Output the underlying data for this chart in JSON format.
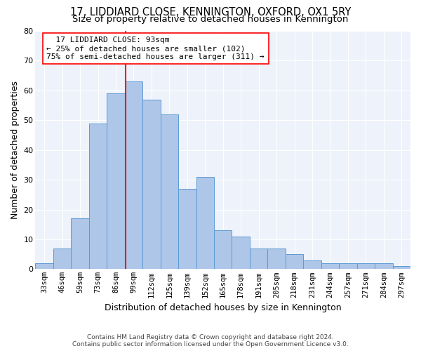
{
  "title1": "17, LIDDIARD CLOSE, KENNINGTON, OXFORD, OX1 5RY",
  "title2": "Size of property relative to detached houses in Kennington",
  "xlabel": "Distribution of detached houses by size in Kennington",
  "ylabel": "Number of detached properties",
  "categories": [
    "33sqm",
    "46sqm",
    "59sqm",
    "73sqm",
    "86sqm",
    "99sqm",
    "112sqm",
    "125sqm",
    "139sqm",
    "152sqm",
    "165sqm",
    "178sqm",
    "191sqm",
    "205sqm",
    "218sqm",
    "231sqm",
    "244sqm",
    "257sqm",
    "271sqm",
    "284sqm",
    "297sqm"
  ],
  "values": [
    2,
    7,
    17,
    49,
    59,
    63,
    57,
    52,
    27,
    31,
    13,
    11,
    7,
    7,
    5,
    3,
    2,
    2,
    2,
    2,
    1
  ],
  "bar_color": "#aec6e8",
  "bar_edge_color": "#5b9bd5",
  "red_line_label": "17 LIDDIARD CLOSE: 93sqm",
  "annotation_line2": "← 25% of detached houses are smaller (102)",
  "annotation_line3": "75% of semi-detached houses are larger (311) →",
  "ylim": [
    0,
    80
  ],
  "yticks": [
    0,
    10,
    20,
    30,
    40,
    50,
    60,
    70,
    80
  ],
  "footer1": "Contains HM Land Registry data © Crown copyright and database right 2024.",
  "footer2": "Contains public sector information licensed under the Open Government Licence v3.0.",
  "bg_color": "#eef2fa",
  "title_fontsize": 10.5,
  "subtitle_fontsize": 9.5,
  "tick_fontsize": 7.5,
  "ylabel_fontsize": 9,
  "xlabel_fontsize": 9,
  "ann_fontsize": 8
}
